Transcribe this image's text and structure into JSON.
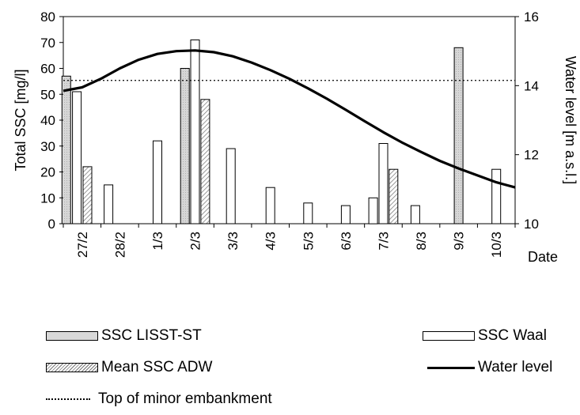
{
  "chart_data": {
    "type": "bar",
    "xlabel": "Date",
    "ylabel": "Total SSC [mg/l]",
    "y2label": "Water level [m a.s.l.]",
    "ylim": [
      0,
      80
    ],
    "y2lim": [
      10,
      16
    ],
    "yticks": [
      "0",
      "10",
      "20",
      "30",
      "40",
      "50",
      "60",
      "70",
      "80"
    ],
    "y2ticks": [
      "10",
      "12",
      "14",
      "16"
    ],
    "categories": [
      "27/2",
      "28/2",
      "1/3",
      "2/3",
      "3/3",
      "4/3",
      "5/3",
      "6/3",
      "7/3",
      "8/3",
      "9/3",
      "10/3"
    ],
    "bars": [
      {
        "series": "SSC LISST-ST",
        "x": -0.42,
        "value": 57
      },
      {
        "series": "SSC Waal",
        "x": -0.14,
        "value": 51
      },
      {
        "series": "Mean SSC ADW",
        "x": 0.14,
        "value": 22
      },
      {
        "series": "SSC Waal",
        "x": 0.7,
        "value": 15
      },
      {
        "series": "SSC Waal",
        "x": 2.0,
        "value": 32
      },
      {
        "series": "SSC LISST-ST",
        "x": 2.73,
        "value": 60
      },
      {
        "series": "SSC Waal",
        "x": 3.0,
        "value": 71
      },
      {
        "series": "Mean SSC ADW",
        "x": 3.27,
        "value": 48
      },
      {
        "series": "SSC Waal",
        "x": 3.95,
        "value": 29
      },
      {
        "series": "SSC Waal",
        "x": 5.0,
        "value": 14
      },
      {
        "series": "SSC Waal",
        "x": 6.0,
        "value": 8
      },
      {
        "series": "SSC Waal",
        "x": 7.0,
        "value": 7
      },
      {
        "series": "SSC Waal",
        "x": 7.73,
        "value": 10
      },
      {
        "series": "SSC Waal",
        "x": 8.0,
        "value": 31
      },
      {
        "series": "Mean SSC ADW",
        "x": 8.27,
        "value": 21
      },
      {
        "series": "SSC Waal",
        "x": 8.85,
        "value": 7
      },
      {
        "series": "SSC LISST-ST",
        "x": 10.0,
        "value": 68
      },
      {
        "series": "SSC Waal",
        "x": 11.0,
        "value": 21
      }
    ],
    "water_level": {
      "name": "Water level",
      "x": [
        -0.5,
        0,
        0.5,
        1,
        1.5,
        2,
        2.5,
        3,
        3.5,
        4,
        4.5,
        5,
        5.5,
        6,
        6.5,
        7,
        7.5,
        8,
        8.5,
        9,
        9.5,
        10,
        10.5,
        11,
        11.5
      ],
      "y": [
        13.85,
        13.95,
        14.2,
        14.5,
        14.75,
        14.92,
        15.0,
        15.02,
        14.97,
        14.85,
        14.67,
        14.45,
        14.2,
        13.92,
        13.62,
        13.3,
        12.97,
        12.65,
        12.35,
        12.08,
        11.82,
        11.6,
        11.4,
        11.2,
        11.05
      ]
    },
    "reference_line": {
      "name": "Top of minor embankment",
      "y": 14.15
    },
    "legend": [
      {
        "key": "lisst",
        "label": "SSC LISST-ST"
      },
      {
        "key": "waal",
        "label": "SSC Waal"
      },
      {
        "key": "adw",
        "label": "Mean SSC ADW"
      },
      {
        "key": "wl",
        "label": "Water level"
      },
      {
        "key": "emb",
        "label": "Top of minor embankment"
      }
    ]
  }
}
